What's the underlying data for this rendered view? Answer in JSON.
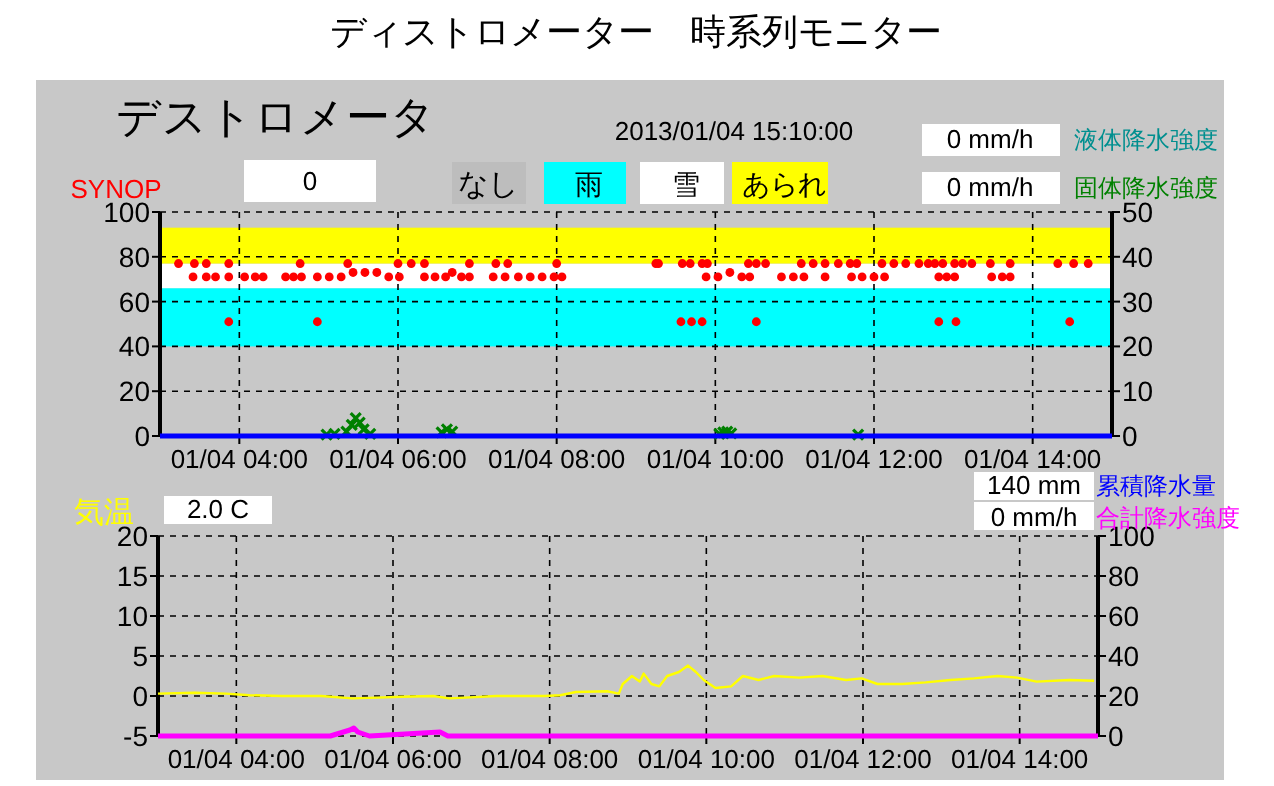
{
  "chart_data": [
    {
      "type": "scatter",
      "title": "ディストロメーター　時系列モニター",
      "subtitle": "デストロメータ",
      "annotations": [
        "2013/01/04 15:10:00",
        "0",
        "0 mm/h",
        "液体降水強度",
        "0 mm/h",
        "なし"
      ],
      "xlim": [
        "2013-01-04T03:00",
        "2013-01-04T15:00"
      ],
      "xticks": [
        {
          "value": "2013-01-04T04:00",
          "label": "01/04 04:00"
        },
        {
          "value": "2013-01-04T06:00",
          "label": "01/04 06:00"
        },
        {
          "value": "2013-01-04T08:00",
          "label": "01/04 08:00"
        },
        {
          "value": "2013-01-04T10:00",
          "label": "01/04 10:00"
        },
        {
          "value": "2013-01-04T12:00",
          "label": "01/04 12:00"
        },
        {
          "value": "2013-01-04T14:00",
          "label": "01/04 14:00"
        }
      ],
      "ylim": [
        0,
        100
      ],
      "yticks": [
        0,
        20,
        40,
        60,
        80,
        100
      ],
      "y2lim": [
        0,
        50
      ],
      "y2ticks": [
        0,
        10,
        20,
        30,
        40,
        50
      ],
      "grid": true,
      "legend": "top",
      "bands": [
        {
          "axis": "y",
          "from": 40,
          "to": 66,
          "label": "雨",
          "color": "#00ffff"
        },
        {
          "axis": "y",
          "from": 66,
          "to": 77,
          "label": "雪",
          "color": "#ffffff"
        },
        {
          "axis": "y",
          "from": 77,
          "to": 93,
          "label": "あられ",
          "color": "#ffff00"
        }
      ],
      "series": [
        {
          "name": "SYNOP",
          "color": "#ff0000",
          "marker": "circle",
          "x": [
            "2013-01-04T03:14",
            "2013-01-04T03:26",
            "2013-01-04T03:35",
            "2013-01-04T03:52",
            "2013-01-04T04:46",
            "2013-01-04T05:22",
            "2013-01-04T06:00",
            "2013-01-04T06:10",
            "2013-01-04T06:20",
            "2013-01-04T06:54",
            "2013-01-04T07:14",
            "2013-01-04T07:23",
            "2013-01-04T08:00",
            "2013-01-04T09:15",
            "2013-01-04T09:17",
            "2013-01-04T09:35",
            "2013-01-04T09:41",
            "2013-01-04T09:50",
            "2013-01-04T09:54",
            "2013-01-04T10:25",
            "2013-01-04T10:31",
            "2013-01-04T10:38",
            "2013-01-04T11:05",
            "2013-01-04T11:14",
            "2013-01-04T11:23",
            "2013-01-04T11:33",
            "2013-01-04T11:42",
            "2013-01-04T11:47",
            "2013-01-04T12:06",
            "2013-01-04T12:15",
            "2013-01-04T12:24",
            "2013-01-04T12:34",
            "2013-01-04T12:41",
            "2013-01-04T12:46",
            "2013-01-04T12:52",
            "2013-01-04T13:01",
            "2013-01-04T13:07",
            "2013-01-04T13:14",
            "2013-01-04T13:28",
            "2013-01-04T13:43",
            "2013-01-04T14:19",
            "2013-01-04T14:31",
            "2013-01-04T14:42",
            "2013-01-04T03:25",
            "2013-01-04T03:35",
            "2013-01-04T03:42",
            "2013-01-04T03:52",
            "2013-01-04T04:04",
            "2013-01-04T04:12",
            "2013-01-04T04:18",
            "2013-01-04T04:35",
            "2013-01-04T04:41",
            "2013-01-04T04:47",
            "2013-01-04T04:59",
            "2013-01-04T05:08",
            "2013-01-04T05:17",
            "2013-01-04T05:26",
            "2013-01-04T05:35",
            "2013-01-04T05:44",
            "2013-01-04T05:53",
            "2013-01-04T06:01",
            "2013-01-04T06:20",
            "2013-01-04T06:28",
            "2013-01-04T06:36",
            "2013-01-04T06:41",
            "2013-01-04T06:48",
            "2013-01-04T06:54",
            "2013-01-04T07:12",
            "2013-01-04T07:21",
            "2013-01-04T07:31",
            "2013-01-04T07:40",
            "2013-01-04T07:49",
            "2013-01-04T07:58",
            "2013-01-04T08:04",
            "2013-01-04T09:53",
            "2013-01-04T10:02",
            "2013-01-04T10:11",
            "2013-01-04T10:20",
            "2013-01-04T10:26",
            "2013-01-04T10:50",
            "2013-01-04T10:59",
            "2013-01-04T11:07",
            "2013-01-04T11:23",
            "2013-01-04T11:43",
            "2013-01-04T11:51",
            "2013-01-04T12:00",
            "2013-01-04T12:08",
            "2013-01-04T12:49",
            "2013-01-04T12:55",
            "2013-01-04T13:01",
            "2013-01-04T13:29",
            "2013-01-04T13:37",
            "2013-01-04T13:43",
            "2013-01-04T03:52",
            "2013-01-04T04:59",
            "2013-01-04T09:34",
            "2013-01-04T09:42",
            "2013-01-04T09:50",
            "2013-01-04T10:31",
            "2013-01-04T12:49",
            "2013-01-04T13:02",
            "2013-01-04T14:28"
          ],
          "values": [
            77,
            77,
            77,
            77,
            77,
            77,
            77,
            77,
            77,
            77,
            77,
            77,
            77,
            77,
            77,
            77,
            77,
            77,
            77,
            77,
            77,
            77,
            77,
            77,
            77,
            77,
            77,
            77,
            77,
            77,
            77,
            77,
            77,
            77,
            77,
            77,
            77,
            77,
            77,
            77,
            77,
            77,
            77,
            71,
            71,
            71,
            71,
            71,
            71,
            71,
            71,
            71,
            71,
            71,
            71,
            71,
            73,
            73,
            73,
            71,
            71,
            71,
            71,
            71,
            73,
            71,
            71,
            71,
            71,
            71,
            71,
            71,
            71,
            71,
            71,
            71,
            73,
            71,
            71,
            71,
            71,
            71,
            71,
            71,
            71,
            71,
            71,
            71,
            71,
            71,
            71,
            71,
            71,
            51,
            51,
            51,
            51,
            51,
            51,
            51,
            51,
            51
          ]
        },
        {
          "name": "固体降水強度",
          "color": "#008000",
          "type": "scatter",
          "marker": "cross",
          "axis": "y2",
          "x": [
            "2013-01-04T05:06",
            "2013-01-04T05:12",
            "2013-01-04T05:21",
            "2013-01-04T05:25",
            "2013-01-04T05:28",
            "2013-01-04T05:31",
            "2013-01-04T05:34",
            "2013-01-04T05:39",
            "2013-01-04T06:33",
            "2013-01-04T06:37",
            "2013-01-04T06:41",
            "2013-01-04T10:03",
            "2013-01-04T10:06",
            "2013-01-04T10:09",
            "2013-01-04T10:12",
            "2013-01-04T11:48"
          ],
          "values": [
            0.3,
            0.5,
            1,
            2.5,
            4,
            3,
            1.5,
            0.5,
            0.8,
            1.5,
            1,
            0.5,
            0.8,
            1,
            0.6,
            0.3
          ]
        },
        {
          "color": "#0000ff",
          "type": "line",
          "x": [
            "2013-01-04T03:00",
            "2013-01-04T15:00"
          ],
          "values": [
            0,
            0
          ]
        }
      ]
    },
    {
      "type": "line",
      "annotations": [
        "2.0 C",
        "140 mm",
        "累積降水量",
        "0 mm/h"
      ],
      "xlim": [
        "2013-01-04T03:00",
        "2013-01-04T15:00"
      ],
      "xticks": [
        {
          "value": "2013-01-04T04:00",
          "label": "01/04 04:00"
        },
        {
          "value": "2013-01-04T06:00",
          "label": "01/04 06:00"
        },
        {
          "value": "2013-01-04T08:00",
          "label": "01/04 08:00"
        },
        {
          "value": "2013-01-04T10:00",
          "label": "01/04 10:00"
        },
        {
          "value": "2013-01-04T12:00",
          "label": "01/04 12:00"
        },
        {
          "value": "2013-01-04T14:00",
          "label": "01/04 14:00"
        }
      ],
      "ylim": [
        -5,
        20
      ],
      "yticks": [
        -5,
        0,
        5,
        10,
        15,
        20
      ],
      "y2lim": [
        0,
        100
      ],
      "y2ticks": [
        0,
        20,
        40,
        60,
        80,
        100
      ],
      "grid": true,
      "series": [
        {
          "name": "気温",
          "color": "#ffff00",
          "x": [
            "2013-01-04T03:00",
            "2013-01-04T03:28",
            "2013-01-04T03:52",
            "2013-01-04T04:10",
            "2013-01-04T04:35",
            "2013-01-04T05:05",
            "2013-01-04T05:29",
            "2013-01-04T05:48",
            "2013-01-04T06:06",
            "2013-01-04T06:31",
            "2013-01-04T06:43",
            "2013-01-04T06:55",
            "2013-01-04T07:19",
            "2013-01-04T07:56",
            "2013-01-04T08:08",
            "2013-01-04T08:20",
            "2013-01-04T08:44",
            "2013-01-04T08:53",
            "2013-01-04T08:56",
            "2013-01-04T09:03",
            "2013-01-04T09:09",
            "2013-01-04T09:12",
            "2013-01-04T09:18",
            "2013-01-04T09:24",
            "2013-01-04T09:30",
            "2013-01-04T09:39",
            "2013-01-04T09:46",
            "2013-01-04T09:52",
            "2013-01-04T09:58",
            "2013-01-04T10:07",
            "2013-01-04T10:19",
            "2013-01-04T10:28",
            "2013-01-04T10:40",
            "2013-01-04T10:52",
            "2013-01-04T11:11",
            "2013-01-04T11:29",
            "2013-01-04T11:47",
            "2013-01-04T11:59",
            "2013-01-04T12:11",
            "2013-01-04T12:30",
            "2013-01-04T12:48",
            "2013-01-04T13:07",
            "2013-01-04T13:25",
            "2013-01-04T13:43",
            "2013-01-04T13:58",
            "2013-01-04T14:13",
            "2013-01-04T14:38",
            "2013-01-04T14:57"
          ],
          "values": [
            0.3,
            0.4,
            0.3,
            0.1,
            0,
            0,
            -0.3,
            -0.2,
            -0.1,
            0,
            -0.3,
            -0.2,
            0,
            0,
            0.1,
            0.5,
            0.6,
            0.3,
            1.5,
            2.5,
            1.8,
            2.8,
            1.5,
            1.2,
            2.5,
            3.0,
            3.8,
            3.0,
            2.0,
            1.0,
            1.2,
            2.5,
            2.0,
            2.5,
            2.3,
            2.5,
            2.0,
            2.2,
            1.5,
            1.5,
            1.7,
            2.0,
            2.2,
            2.5,
            2.3,
            1.8,
            2.0,
            1.9
          ]
        },
        {
          "name": "合計降水強度",
          "color": "#ff00ff",
          "axis": "y2",
          "x": [
            "2013-01-04T03:00",
            "2013-01-04T04:30",
            "2013-01-04T05:12",
            "2013-01-04T05:27",
            "2013-01-04T05:30",
            "2013-01-04T05:33",
            "2013-01-04T05:42",
            "2013-01-04T06:36",
            "2013-01-04T06:42",
            "2013-01-04T10:06",
            "2013-01-04T15:00"
          ],
          "values": [
            0,
            0,
            0,
            3,
            4,
            2,
            0,
            2,
            0,
            0,
            0
          ]
        }
      ]
    }
  ]
}
